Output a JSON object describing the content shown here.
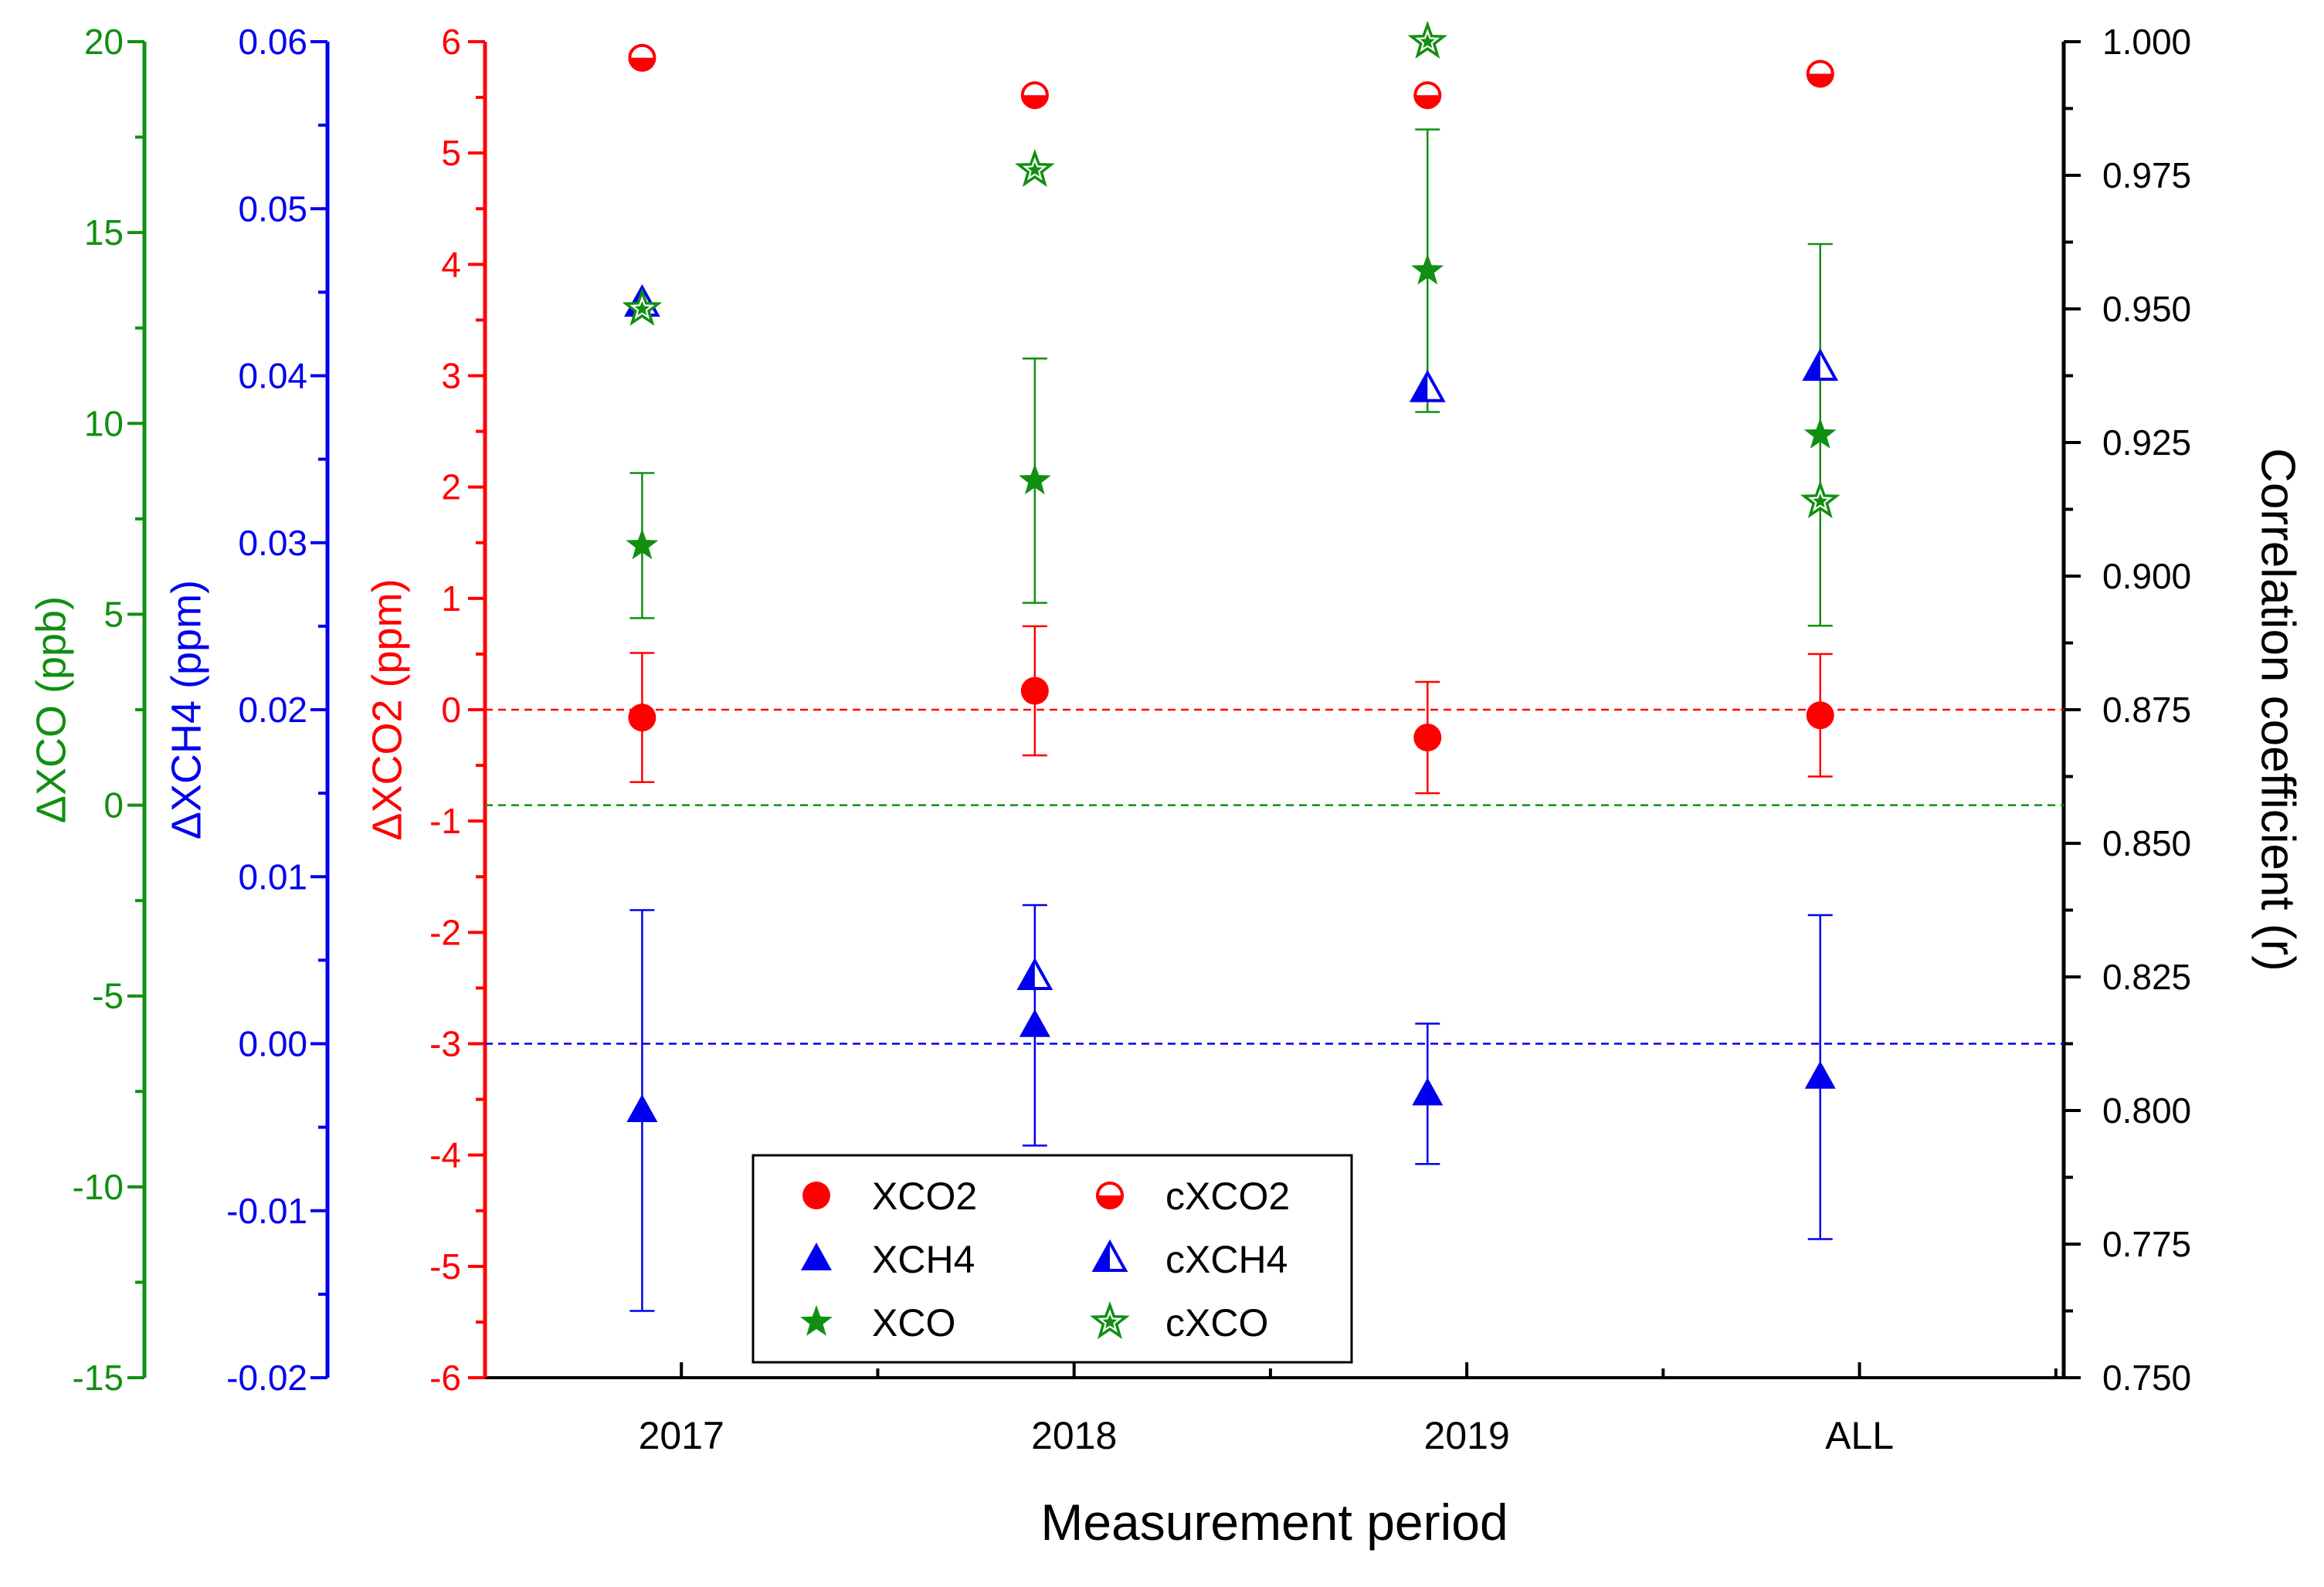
{
  "chart_data": {
    "type": "scatter",
    "xlabel": "Measurement period",
    "categories": [
      "2017",
      "2018",
      "2019",
      "ALL"
    ],
    "colors": {
      "red": "#ff0000",
      "blue": "#0000ee",
      "green": "#118f11",
      "black": "#000000"
    },
    "axes": {
      "xco": {
        "label": "ΔXCO (ppb)",
        "range": [
          -15,
          20
        ],
        "ticks": [
          20,
          15,
          10,
          5,
          0,
          -5,
          -10,
          -15
        ],
        "tick_labels": [
          "20",
          "15",
          "10",
          "5",
          "0",
          "-5",
          "-10",
          "-15"
        ],
        "color": "#118f11"
      },
      "xch4": {
        "label": "ΔXCH4 (ppm)",
        "range": [
          -0.02,
          0.06
        ],
        "ticks": [
          0.06,
          0.05,
          0.04,
          0.03,
          0.02,
          0.01,
          0.0,
          -0.01,
          -0.02
        ],
        "tick_labels": [
          "0.06",
          "0.05",
          "0.04",
          "0.03",
          "0.02",
          "0.01",
          "0.00",
          "-0.01",
          "-0.02"
        ],
        "color": "#0000ee"
      },
      "xco2": {
        "label": "ΔXCO2 (ppm)",
        "range": [
          -6,
          6
        ],
        "ticks": [
          6,
          5,
          4,
          3,
          2,
          1,
          0,
          -1,
          -2,
          -3,
          -4,
          -5,
          -6
        ],
        "tick_labels": [
          "6",
          "5",
          "4",
          "3",
          "2",
          "1",
          "0",
          "-1",
          "-2",
          "-3",
          "-4",
          "-5",
          "-6"
        ],
        "color": "#ff0000"
      },
      "r": {
        "label": "Correlation coefficient (r)",
        "range": [
          0.75,
          1.0
        ],
        "ticks": [
          1.0,
          0.975,
          0.95,
          0.925,
          0.9,
          0.875,
          0.85,
          0.825,
          0.8,
          0.775,
          0.75
        ],
        "tick_labels": [
          "1.000",
          "0.975",
          "0.950",
          "0.925",
          "0.900",
          "0.875",
          "0.850",
          "0.825",
          "0.800",
          "0.775",
          "0.750"
        ],
        "color": "#000000"
      }
    },
    "series": [
      {
        "name": "XCO2",
        "axis": "xco2",
        "marker": "circle",
        "fill": "full",
        "color": "#ff0000",
        "x": [
          0.9,
          1.9,
          2.9,
          3.9
        ],
        "values": [
          -0.07,
          0.17,
          -0.25,
          -0.05
        ],
        "err": [
          0.58,
          0.58,
          0.5,
          0.55
        ]
      },
      {
        "name": "XCH4",
        "axis": "xch4",
        "marker": "triangle",
        "fill": "full",
        "color": "#0000ee",
        "x": [
          0.9,
          1.9,
          2.9,
          3.9
        ],
        "values": [
          -0.004,
          0.0011,
          -0.003,
          -0.002
        ],
        "err": [
          0.012,
          0.0072,
          0.0042,
          0.0097
        ]
      },
      {
        "name": "XCO",
        "axis": "xco",
        "marker": "star",
        "fill": "full",
        "color": "#118f11",
        "x": [
          0.9,
          1.9,
          2.9,
          3.9
        ],
        "values": [
          6.8,
          8.5,
          14.0,
          9.7
        ],
        "err": [
          1.9,
          3.2,
          3.7,
          5.0
        ]
      },
      {
        "name": "cXCO2",
        "axis": "r",
        "marker": "circle",
        "fill": "half",
        "color": "#ff0000",
        "x": [
          0.9,
          1.9,
          2.9,
          3.9
        ],
        "values": [
          0.997,
          0.99,
          0.99,
          0.994
        ]
      },
      {
        "name": "cXCH4",
        "axis": "r",
        "marker": "triangle",
        "fill": "half",
        "color": "#0000ee",
        "x": [
          0.9,
          1.9,
          2.9,
          3.9
        ],
        "values": [
          0.951,
          0.825,
          0.935,
          0.939
        ]
      },
      {
        "name": "cXCO",
        "axis": "r",
        "marker": "star",
        "fill": "half",
        "color": "#118f11",
        "x": [
          0.9,
          1.9,
          2.9,
          3.9
        ],
        "values": [
          0.95,
          0.976,
          1.0,
          0.914
        ]
      }
    ],
    "reference_lines": [
      {
        "axis": "xco2",
        "value": 0,
        "color": "#ff0000"
      },
      {
        "axis": "xco",
        "value": 0,
        "color": "#118f11"
      },
      {
        "axis": "xch4",
        "value": 0,
        "color": "#0000ee"
      }
    ],
    "legend": {
      "placement": "bottom-center",
      "order": [
        "XCO2",
        "cXCO2",
        "XCH4",
        "cXCH4",
        "XCO",
        "cXCO"
      ]
    }
  }
}
